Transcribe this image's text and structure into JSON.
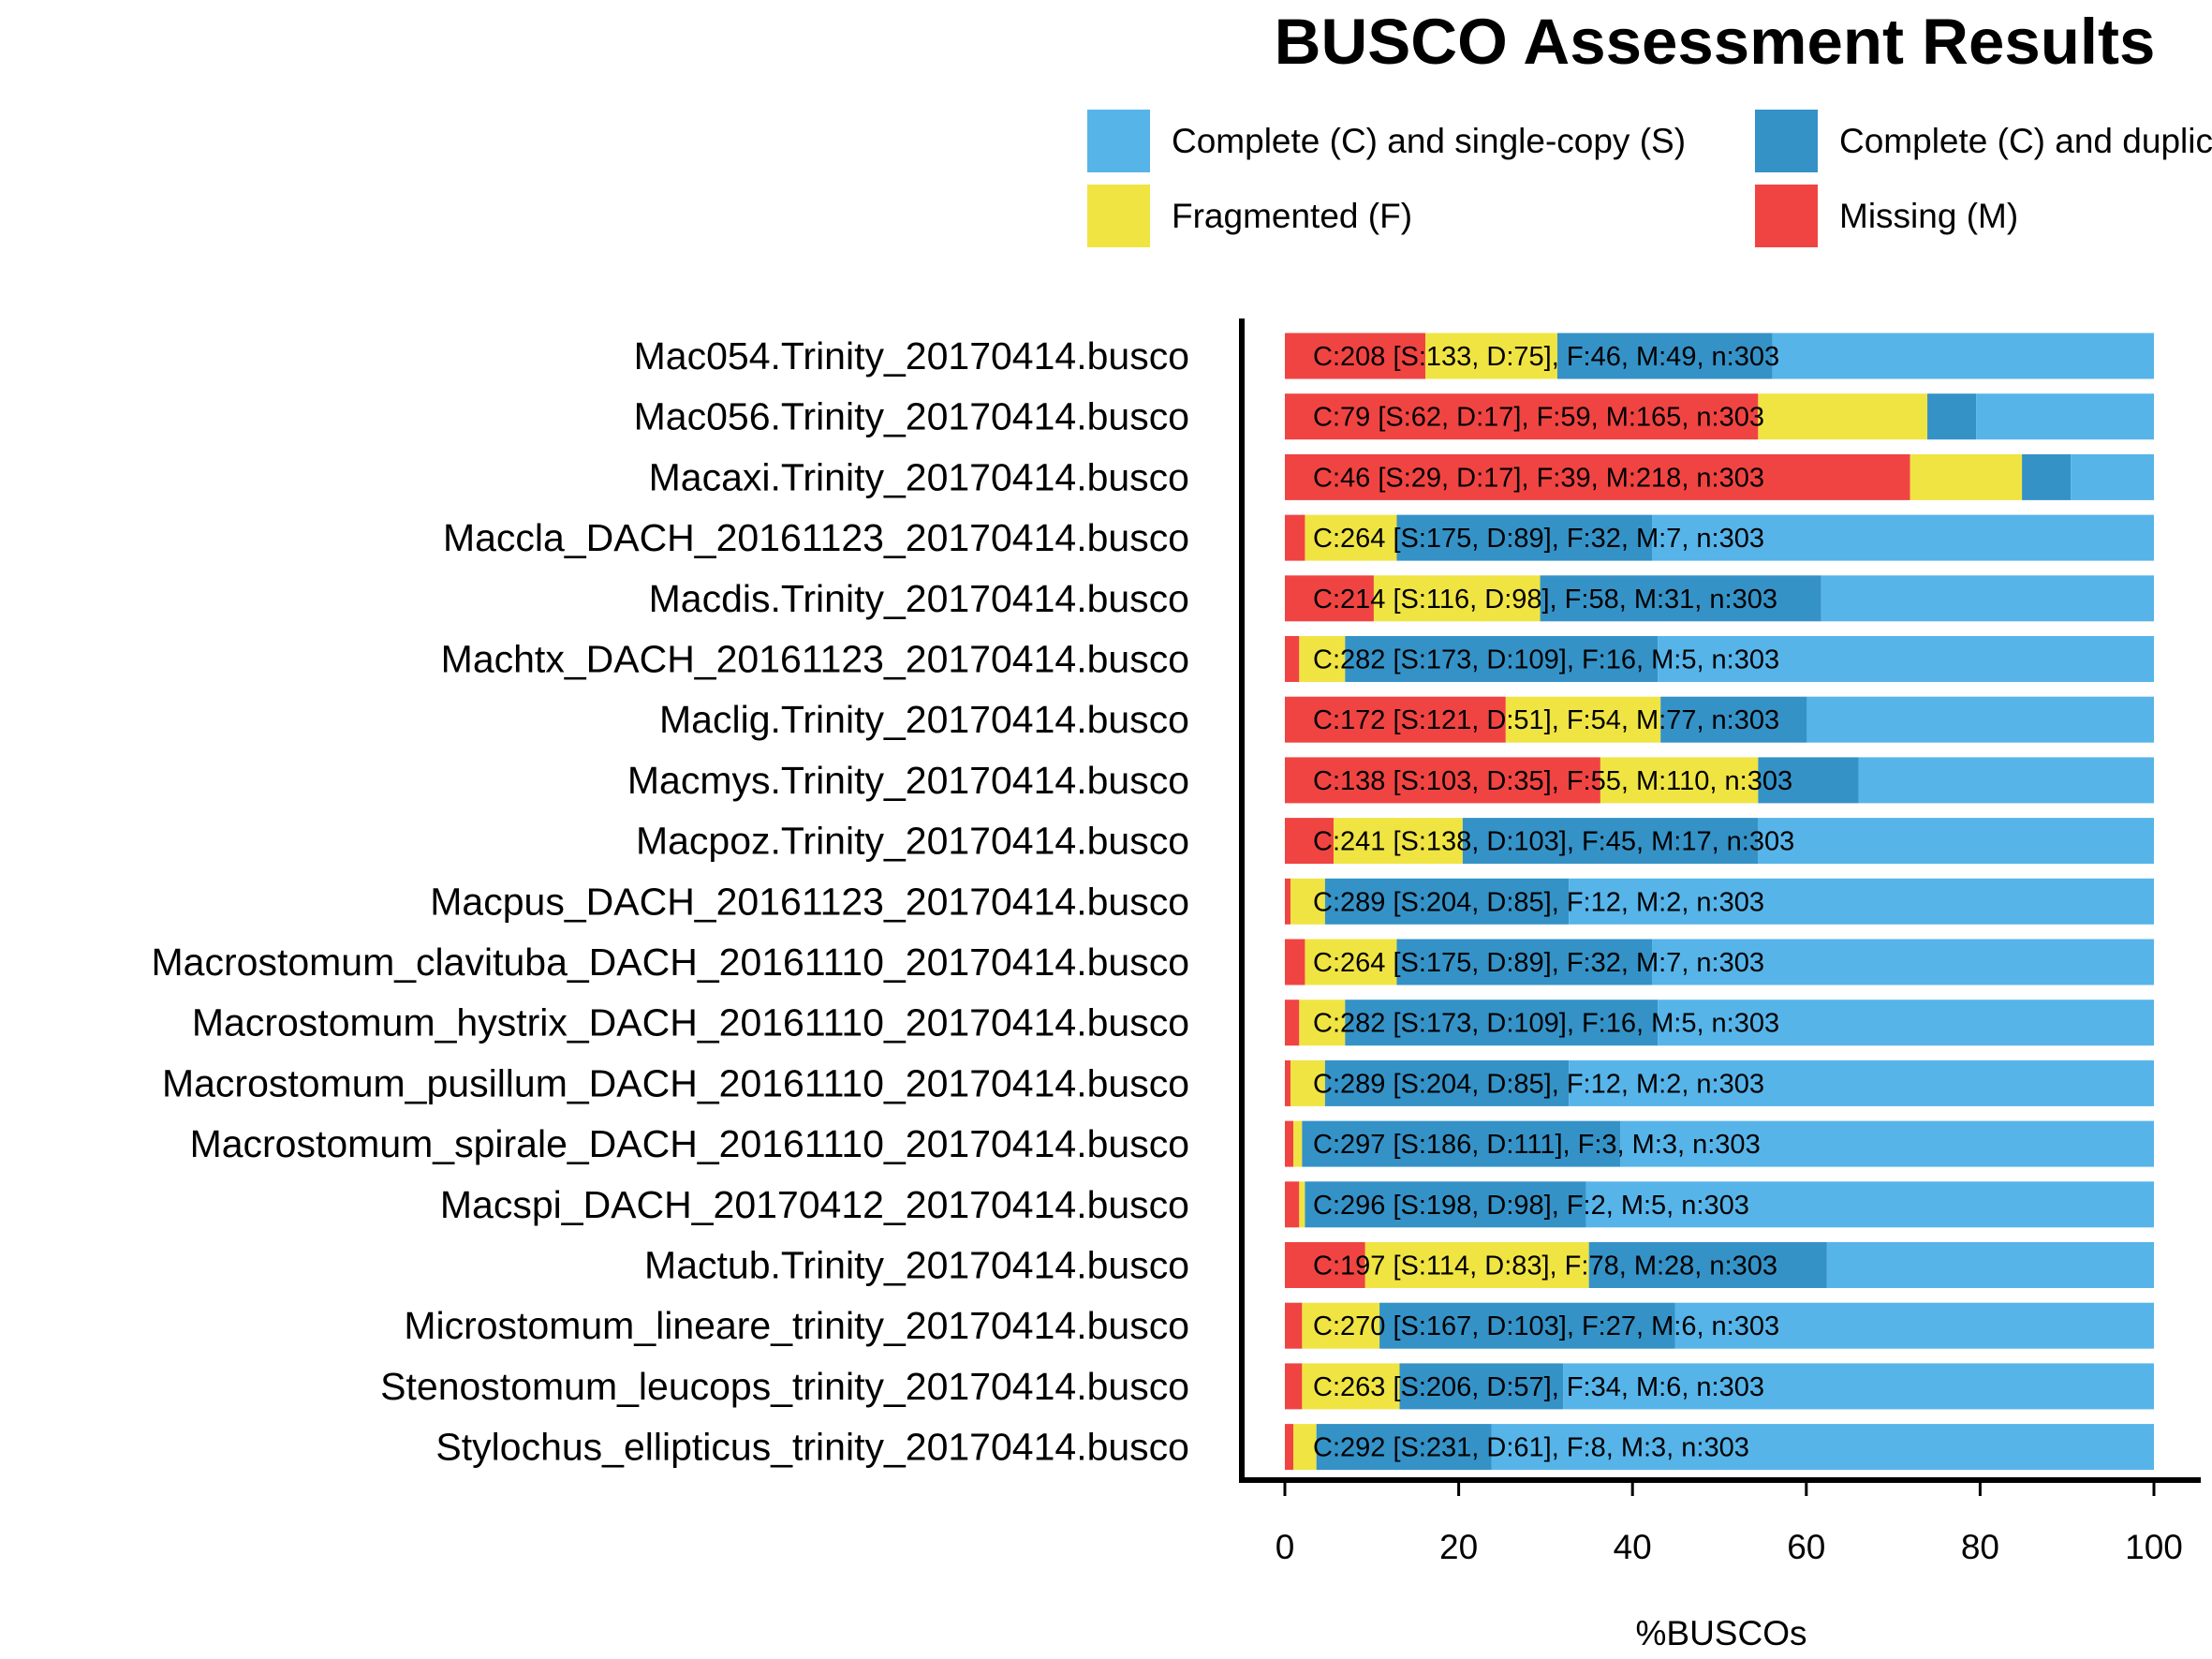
{
  "chart_data": {
    "type": "bar",
    "orientation": "horizontal",
    "stacked": true,
    "title": "BUSCO Assessment Results",
    "xlabel": "%BUSCOs",
    "ylabel": "",
    "xlim": [
      0,
      100
    ],
    "xticks": [
      "0",
      "20",
      "40",
      "60",
      "80",
      "100"
    ],
    "grid": false,
    "legend_position": "top",
    "legend": [
      {
        "key": "S",
        "label": "Complete (C) and single-copy (S)",
        "color": "#56B4E9"
      },
      {
        "key": "D",
        "label": "Complete (C) and duplicated (D)",
        "color": "#3492C7"
      },
      {
        "key": "F",
        "label": "Fragmented (F)",
        "color": "#F0E442"
      },
      {
        "key": "M",
        "label": "Missing (M)",
        "color": "#F04442"
      }
    ],
    "total": 303,
    "categories": [
      "Mac054.Trinity_20170414.busco",
      "Mac056.Trinity_20170414.busco",
      "Macaxi.Trinity_20170414.busco",
      "Maccla_DACH_20161123_20170414.busco",
      "Macdis.Trinity_20170414.busco",
      "Machtx_DACH_20161123_20170414.busco",
      "Maclig.Trinity_20170414.busco",
      "Macmys.Trinity_20170414.busco",
      "Macpoz.Trinity_20170414.busco",
      "Macpus_DACH_20161123_20170414.busco",
      "Macrostomum_clavituba_DACH_20161110_20170414.busco",
      "Macrostomum_hystrix_DACH_20161110_20170414.busco",
      "Macrostomum_pusillum_DACH_20161110_20170414.busco",
      "Macrostomum_spirale_DACH_20161110_20170414.busco",
      "Macspi_DACH_20170412_20170414.busco",
      "Mactub.Trinity_20170414.busco",
      "Microstomum_lineare_trinity_20170414.busco",
      "Stenostomum_leucops_trinity_20170414.busco",
      "Stylochus_ellipticus_trinity_20170414.busco"
    ],
    "counts": [
      {
        "C": 208,
        "S": 133,
        "D": 75,
        "F": 46,
        "M": 49
      },
      {
        "C": 79,
        "S": 62,
        "D": 17,
        "F": 59,
        "M": 165
      },
      {
        "C": 46,
        "S": 29,
        "D": 17,
        "F": 39,
        "M": 218
      },
      {
        "C": 264,
        "S": 175,
        "D": 89,
        "F": 32,
        "M": 7
      },
      {
        "C": 214,
        "S": 116,
        "D": 98,
        "F": 58,
        "M": 31
      },
      {
        "C": 282,
        "S": 173,
        "D": 109,
        "F": 16,
        "M": 5
      },
      {
        "C": 172,
        "S": 121,
        "D": 51,
        "F": 54,
        "M": 77
      },
      {
        "C": 138,
        "S": 103,
        "D": 35,
        "F": 55,
        "M": 110
      },
      {
        "C": 241,
        "S": 138,
        "D": 103,
        "F": 45,
        "M": 17
      },
      {
        "C": 289,
        "S": 204,
        "D": 85,
        "F": 12,
        "M": 2
      },
      {
        "C": 264,
        "S": 175,
        "D": 89,
        "F": 32,
        "M": 7
      },
      {
        "C": 282,
        "S": 173,
        "D": 109,
        "F": 16,
        "M": 5
      },
      {
        "C": 289,
        "S": 204,
        "D": 85,
        "F": 12,
        "M": 2
      },
      {
        "C": 297,
        "S": 186,
        "D": 111,
        "F": 3,
        "M": 3
      },
      {
        "C": 296,
        "S": 198,
        "D": 98,
        "F": 2,
        "M": 5
      },
      {
        "C": 197,
        "S": 114,
        "D": 83,
        "F": 78,
        "M": 28
      },
      {
        "C": 270,
        "S": 167,
        "D": 103,
        "F": 27,
        "M": 6
      },
      {
        "C": 263,
        "S": 206,
        "D": 57,
        "F": 34,
        "M": 6
      },
      {
        "C": 292,
        "S": 231,
        "D": 61,
        "F": 8,
        "M": 3
      }
    ],
    "bar_labels": [
      "C:208 [S:133, D:75], F:46, M:49, n:303",
      "C:79 [S:62, D:17], F:59, M:165, n:303",
      "C:46 [S:29, D:17], F:39, M:218, n:303",
      "C:264 [S:175, D:89], F:32, M:7, n:303",
      "C:214 [S:116, D:98], F:58, M:31, n:303",
      "C:282 [S:173, D:109], F:16, M:5, n:303",
      "C:172 [S:121, D:51], F:54, M:77, n:303",
      "C:138 [S:103, D:35], F:55, M:110, n:303",
      "C:241 [S:138, D:103], F:45, M:17, n:303",
      "C:289 [S:204, D:85], F:12, M:2, n:303",
      "C:264 [S:175, D:89], F:32, M:7, n:303",
      "C:282 [S:173, D:109], F:16, M:5, n:303",
      "C:289 [S:204, D:85], F:12, M:2, n:303",
      "C:297 [S:186, D:111], F:3, M:3, n:303",
      "C:296 [S:198, D:98], F:2, M:5, n:303",
      "C:197 [S:114, D:83], F:78, M:28, n:303",
      "C:270 [S:167, D:103], F:27, M:6, n:303",
      "C:263 [S:206, D:57], F:34, M:6, n:303",
      "C:292 [S:231, D:61], F:8, M:3, n:303"
    ]
  }
}
